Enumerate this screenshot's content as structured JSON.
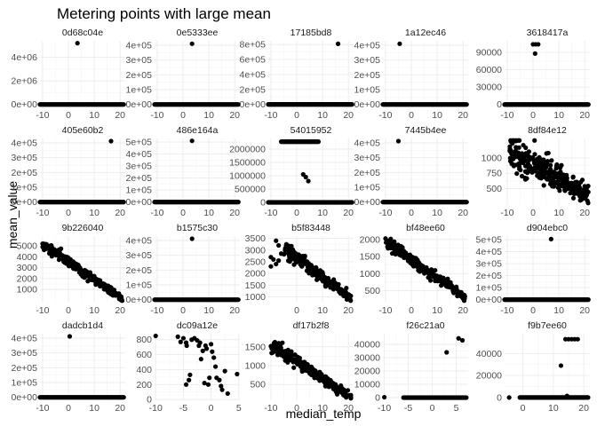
{
  "chart_data": {
    "type": "scatter",
    "title": "Metering points with large mean",
    "xlabel": "median_temp",
    "ylabel": "mean_value",
    "grid": true,
    "point_color": "#000000",
    "panels": [
      {
        "name": "0d68c04e",
        "xlim": [
          -11,
          22
        ],
        "ylim": [
          -250000,
          5400000
        ],
        "xticks": [
          -10,
          0,
          10,
          20
        ],
        "xtick_labels": [
          "-10",
          "0",
          "10",
          "20"
        ],
        "yticks": [
          0,
          2000000,
          4000000
        ],
        "ytick_labels": [
          "0e+00",
          "2e+06",
          "4e+06"
        ],
        "points": [
          [
            3.5,
            5200000
          ]
        ],
        "flat": {
          "x": [
            -11,
            21.5
          ],
          "y": 0
        }
      },
      {
        "name": "0e5333ee",
        "xlim": [
          -11,
          22
        ],
        "ylim": [
          -20000,
          430000
        ],
        "xticks": [
          -10,
          0,
          10,
          20
        ],
        "xtick_labels": [
          "-10",
          "0",
          "10",
          "20"
        ],
        "yticks": [
          0,
          100000,
          200000,
          300000,
          400000
        ],
        "ytick_labels": [
          "0e+00",
          "1e+05",
          "2e+05",
          "3e+05",
          "4e+05"
        ],
        "points": [
          [
            3.5,
            410000
          ]
        ],
        "flat": {
          "x": [
            -11,
            21.5
          ],
          "y": 0
        }
      },
      {
        "name": "17185bd8",
        "xlim": [
          -11,
          22
        ],
        "ylim": [
          -40000,
          850000
        ],
        "xticks": [
          -10,
          0,
          10,
          20
        ],
        "xtick_labels": [
          "-10",
          "0",
          "10",
          "20"
        ],
        "yticks": [
          0,
          200000,
          400000,
          600000,
          800000
        ],
        "ytick_labels": [
          "0e+00",
          "2e+05",
          "4e+05",
          "6e+05",
          "8e+05"
        ],
        "points": [
          [
            16,
            810000
          ]
        ],
        "flat": {
          "x": [
            -11,
            21.5
          ],
          "y": 0
        }
      },
      {
        "name": "1a12ec46",
        "xlim": [
          -11,
          22
        ],
        "ylim": [
          -20000,
          430000
        ],
        "xticks": [
          -10,
          0,
          10,
          20
        ],
        "xtick_labels": [
          "-10",
          "0",
          "10",
          "20"
        ],
        "yticks": [
          0,
          100000,
          200000,
          300000,
          400000
        ],
        "ytick_labels": [
          "0e+00",
          "1e+05",
          "2e+05",
          "3e+05",
          "4e+05"
        ],
        "points": [
          [
            -4.5,
            410000
          ]
        ],
        "flat": {
          "x": [
            -11,
            21.5
          ],
          "y": 0
        }
      },
      {
        "name": "3618417a",
        "xlim": [
          -11,
          22
        ],
        "ylim": [
          -5000,
          110000
        ],
        "xticks": [
          -10,
          0,
          10,
          20
        ],
        "xtick_labels": [
          "-10",
          "0",
          "10",
          "20"
        ],
        "yticks": [
          0,
          30000,
          60000,
          90000
        ],
        "ytick_labels": [
          "0",
          "30000",
          "60000",
          "90000"
        ],
        "points": [
          [
            0,
            104000
          ],
          [
            1,
            104000
          ],
          [
            2,
            104000
          ],
          [
            0.8,
            88000
          ]
        ],
        "flat": {
          "x": [
            -11,
            21.5
          ],
          "y": 0
        }
      },
      {
        "name": "405e60b2",
        "xlim": [
          -11,
          22
        ],
        "ylim": [
          -20000,
          430000
        ],
        "xticks": [
          -10,
          0,
          10,
          20
        ],
        "xtick_labels": [
          "-10",
          "0",
          "10",
          "20"
        ],
        "yticks": [
          0,
          100000,
          200000,
          300000,
          400000
        ],
        "ytick_labels": [
          "0e+00",
          "1e+05",
          "2e+05",
          "3e+05",
          "4e+05"
        ],
        "points": [
          [
            16.5,
            412000
          ]
        ],
        "flat": {
          "x": [
            -11,
            21.5
          ],
          "y": 0
        }
      },
      {
        "name": "486e164a",
        "xlim": [
          -11,
          22
        ],
        "ylim": [
          -25000,
          530000
        ],
        "xticks": [
          -10,
          0,
          10,
          20
        ],
        "xtick_labels": [
          "-10",
          "0",
          "10",
          "20"
        ],
        "yticks": [
          0,
          100000,
          200000,
          300000,
          400000,
          500000
        ],
        "ytick_labels": [
          "0e+00",
          "1e+05",
          "2e+05",
          "3e+05",
          "4e+05",
          "5e+05"
        ],
        "points": [
          [
            3.5,
            510000
          ]
        ],
        "flat": {
          "x": [
            -11,
            21.5
          ],
          "y": 0
        }
      },
      {
        "name": "54015952",
        "xlim": [
          -11,
          22
        ],
        "ylim": [
          -100000,
          2400000
        ],
        "xticks": [
          -10,
          0,
          10,
          20
        ],
        "xtick_labels": [
          "-10",
          "0",
          "10",
          "20"
        ],
        "yticks": [
          0,
          500000,
          1000000,
          1500000,
          2000000
        ],
        "ytick_labels": [
          "0",
          "500000",
          "1000000",
          "1500000",
          "2000000"
        ],
        "points": [
          [
            2.5,
            1050000
          ],
          [
            3.5,
            950000
          ],
          [
            4.5,
            800000
          ]
        ],
        "flat": {
          "x": [
            -11,
            21.5
          ],
          "y": 0
        },
        "band": {
          "x": [
            -6,
            8.5
          ],
          "y": 2280000
        }
      },
      {
        "name": "7445b4ee",
        "xlim": [
          -11,
          22
        ],
        "ylim": [
          -20000,
          430000
        ],
        "xticks": [
          -10,
          0,
          10,
          20
        ],
        "xtick_labels": [
          "-10",
          "0",
          "10",
          "20"
        ],
        "yticks": [
          0,
          100000,
          200000,
          300000,
          400000
        ],
        "ytick_labels": [
          "0e+00",
          "1e+05",
          "2e+05",
          "3e+05",
          "4e+05"
        ],
        "points": [
          [
            -5,
            412000
          ]
        ],
        "flat": {
          "x": [
            -11,
            21.5
          ],
          "y": 0
        }
      },
      {
        "name": "8df84e12",
        "xlim": [
          -11,
          22
        ],
        "ylim": [
          230,
          1320
        ],
        "xticks": [
          -10,
          0,
          10,
          20
        ],
        "xtick_labels": [
          "-10",
          "0",
          "10",
          "20"
        ],
        "yticks": [
          500,
          750,
          1000
        ],
        "ytick_labels": [
          "500",
          "750",
          "1000"
        ],
        "trend": {
          "x0": -9,
          "x1": 21.5,
          "y0": 1130,
          "y1": 380,
          "spread": 140,
          "n": 320
        }
      },
      {
        "name": "9b226040",
        "xlim": [
          -11,
          22
        ],
        "ylim": [
          -200,
          5900
        ],
        "xticks": [
          -10,
          0,
          10,
          20
        ],
        "xtick_labels": [
          "-10",
          "0",
          "10",
          "20"
        ],
        "yticks": [
          1000,
          2000,
          3000,
          4000,
          5000
        ],
        "ytick_labels": [
          "1000",
          "2000",
          "3000",
          "4000",
          "5000"
        ],
        "trend": {
          "x0": -10,
          "x1": 21,
          "y0": 5200,
          "y1": 150,
          "spread": 250,
          "n": 300
        }
      },
      {
        "name": "b1575c30",
        "xlim": [
          -11,
          22
        ],
        "ylim": [
          -20000,
          430000
        ],
        "xticks": [
          -10,
          0,
          10,
          20
        ],
        "xtick_labels": [
          "-10",
          "0",
          "10",
          "20"
        ],
        "yticks": [
          0,
          100000,
          200000,
          300000,
          400000
        ],
        "ytick_labels": [
          "0e+00",
          "1e+05",
          "2e+05",
          "3e+05",
          "4e+05"
        ],
        "points": [
          [
            3.5,
            412000
          ]
        ],
        "flat": {
          "x": [
            -11,
            21.5
          ],
          "y": 0
        }
      },
      {
        "name": "b5f83448",
        "xlim": [
          -11,
          22
        ],
        "ylim": [
          750,
          3600
        ],
        "xticks": [
          0,
          10,
          20
        ],
        "xtick_labels": [
          "0",
          "10",
          "20"
        ],
        "yticks": [
          1000,
          1500,
          2000,
          2500,
          3000,
          3500
        ],
        "ytick_labels": [
          "1000",
          "1500",
          "2000",
          "2500",
          "3000",
          "3500"
        ],
        "trend": {
          "x0": -5,
          "x1": 21,
          "y0": 3100,
          "y1": 900,
          "spread": 170,
          "n": 230
        },
        "points": [
          [
            -10,
            2700
          ],
          [
            -10,
            2300
          ],
          [
            -9,
            2600
          ],
          [
            -8,
            3400
          ],
          [
            -8,
            2400
          ],
          [
            -7,
            3200
          ],
          [
            -7,
            2550
          ],
          [
            -6,
            2850
          ]
        ]
      },
      {
        "name": "bf48ee60",
        "xlim": [
          -11,
          22
        ],
        "ylim": [
          150,
          2100
        ],
        "xticks": [
          -10,
          0,
          10,
          20
        ],
        "xtick_labels": [
          "-10",
          "0",
          "10",
          "20"
        ],
        "yticks": [
          500,
          1000,
          1500,
          2000
        ],
        "ytick_labels": [
          "500",
          "1000",
          "1500",
          "2000"
        ],
        "trend": {
          "x0": -10,
          "x1": 21,
          "y0": 1950,
          "y1": 270,
          "spread": 90,
          "n": 260
        }
      },
      {
        "name": "d904ebc0",
        "xlim": [
          -11,
          22
        ],
        "ylim": [
          -25000,
          530000
        ],
        "xticks": [
          -10,
          0,
          10,
          20
        ],
        "xtick_labels": [
          "-10",
          "0",
          "10",
          "20"
        ],
        "yticks": [
          0,
          100000,
          200000,
          300000,
          400000,
          500000
        ],
        "ytick_labels": [
          "0e+00",
          "1e+05",
          "2e+05",
          "3e+05",
          "4e+05",
          "5e+05"
        ],
        "points": [
          [
            7,
            505000
          ]
        ],
        "flat": {
          "x": [
            -11,
            21.5
          ],
          "y": 0
        }
      },
      {
        "name": "dadcb1d4",
        "xlim": [
          -11,
          22
        ],
        "ylim": [
          -20000,
          430000
        ],
        "xticks": [
          -10,
          0,
          10,
          20
        ],
        "xtick_labels": [
          "-10",
          "0",
          "10",
          "20"
        ],
        "yticks": [
          0,
          100000,
          200000,
          300000,
          400000
        ],
        "ytick_labels": [
          "0e+00",
          "1e+05",
          "2e+05",
          "3e+05",
          "4e+05"
        ],
        "points": [
          [
            0.5,
            412000
          ]
        ],
        "flat": {
          "x": [
            -11,
            21.5
          ],
          "y": 0
        }
      },
      {
        "name": "dc09a12e",
        "xlim": [
          -10.2,
          5.2
        ],
        "ylim": [
          -10,
          880
        ],
        "xticks": [
          -10,
          -5,
          0,
          5
        ],
        "xtick_labels": [
          "-10",
          "-5",
          "0",
          "5"
        ],
        "yticks": [
          0,
          200,
          400,
          600,
          800
        ],
        "ytick_labels": [
          "0",
          "200",
          "400",
          "600",
          "800"
        ],
        "points": [
          [
            -10,
            850
          ],
          [
            -6,
            840
          ],
          [
            -5.5,
            770
          ],
          [
            -5,
            820
          ],
          [
            -4.5,
            760
          ],
          [
            -4.4,
            720
          ],
          [
            -4.5,
            200
          ],
          [
            -4,
            260
          ],
          [
            -3.8,
            330
          ],
          [
            -3.5,
            800
          ],
          [
            -3,
            820
          ],
          [
            -2.5,
            790
          ],
          [
            -2.2,
            720
          ],
          [
            -2,
            760
          ],
          [
            -1.8,
            540
          ],
          [
            -1.5,
            650
          ],
          [
            -1.2,
            220
          ],
          [
            -1,
            720
          ],
          [
            -0.8,
            680
          ],
          [
            -0.5,
            200
          ],
          [
            -0.3,
            290
          ],
          [
            0,
            740
          ],
          [
            0.2,
            640
          ],
          [
            0.5,
            560
          ],
          [
            0.8,
            440
          ],
          [
            1,
            290
          ],
          [
            1.5,
            260
          ],
          [
            2,
            130
          ],
          [
            2.5,
            380
          ],
          [
            3,
            80
          ],
          [
            4.7,
            340
          ],
          [
            1.8,
            180
          ]
        ]
      },
      {
        "name": "df17b2f8",
        "xlim": [
          -11,
          22
        ],
        "ylim": [
          80,
          1850
        ],
        "xticks": [
          -10,
          0,
          10,
          20
        ],
        "xtick_labels": [
          "-10",
          "0",
          "10",
          "20"
        ],
        "yticks": [
          500,
          1000,
          1500
        ],
        "ytick_labels": [
          "500",
          "1000",
          "1500"
        ],
        "trend": {
          "x0": -10,
          "x1": 21,
          "y0": 1570,
          "y1": 150,
          "spread": 90,
          "n": 280
        }
      },
      {
        "name": "f26c21a0",
        "xlim": [
          -10.3,
          7.5
        ],
        "ylim": [
          -2000,
          48000
        ],
        "xticks": [
          -10,
          -5,
          0,
          5
        ],
        "xtick_labels": [
          "-10",
          "-5",
          "0",
          "5"
        ],
        "yticks": [
          0,
          10000,
          20000,
          30000,
          40000
        ],
        "ytick_labels": [
          "0",
          "10000",
          "20000",
          "30000",
          "40000"
        ],
        "points": [
          [
            -10,
            300
          ],
          [
            3,
            34000
          ],
          [
            5.5,
            44500
          ],
          [
            6.3,
            43000
          ]
        ],
        "flat": {
          "x": [
            -6,
            7.2
          ],
          "y": 0
        }
      },
      {
        "name": "f9b7ee60",
        "xlim": [
          -6,
          22
        ],
        "ylim": [
          -2500,
          58000
        ],
        "xticks": [
          0,
          10,
          20
        ],
        "xtick_labels": [
          "0",
          "10",
          "20"
        ],
        "yticks": [
          0,
          20000,
          40000
        ],
        "ytick_labels": [
          "0",
          "20000",
          "40000"
        ],
        "points": [
          [
            12.5,
            29000
          ],
          [
            14,
            53000
          ],
          [
            15,
            53000
          ],
          [
            16,
            53000
          ],
          [
            17,
            53000
          ],
          [
            18,
            53000
          ],
          [
            14.5,
            1500
          ],
          [
            -4.5,
            0
          ]
        ],
        "flat": {
          "x": [
            -1,
            21.5
          ],
          "y": 0
        }
      }
    ]
  }
}
